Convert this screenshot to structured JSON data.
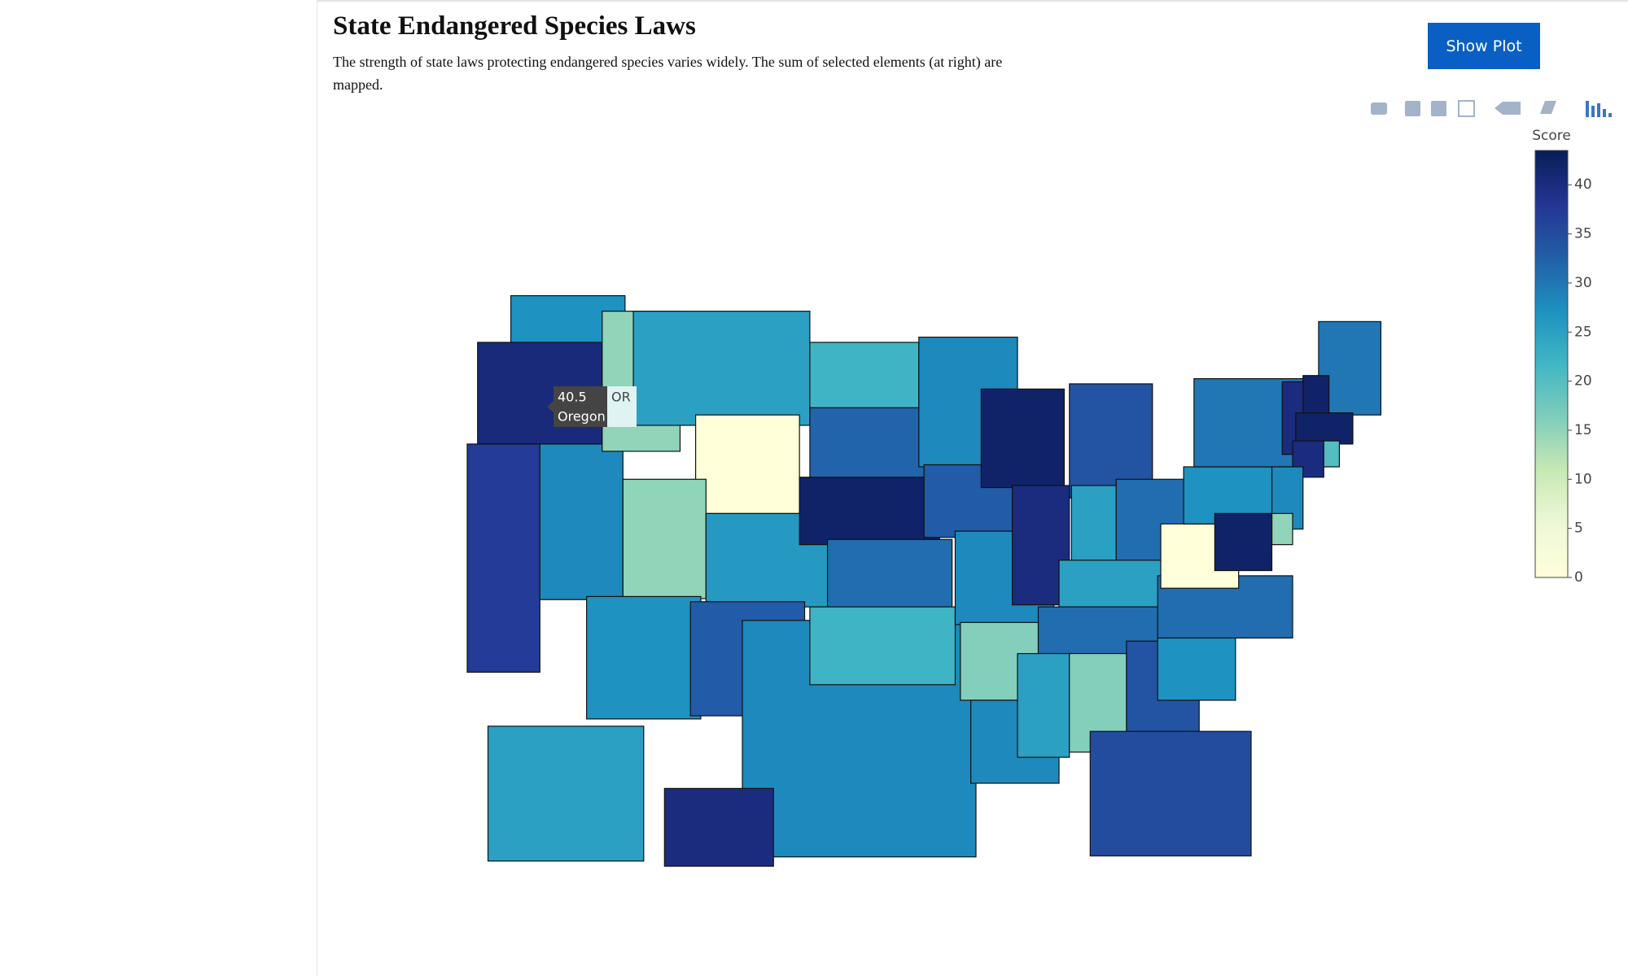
{
  "header": {
    "title": "State Endangered Species Laws",
    "subtitle": "The strength of state laws protecting endangered species varies widely. The sum of selected elements (at right) are mapped."
  },
  "button": {
    "label": "Show Plot"
  },
  "chart_data": {
    "type": "choropleth",
    "values": [
      27,
      40.5,
      37,
      28,
      15,
      25,
      0,
      15,
      27,
      26,
      33,
      22,
      32,
      42,
      31,
      28,
      22,
      28,
      33,
      28,
      16,
      28,
      42,
      40,
      34,
      25,
      31,
      25,
      31,
      25,
      16,
      34,
      35,
      27,
      31,
      0,
      27,
      30,
      30,
      40,
      42,
      42,
      40,
      20,
      28,
      15,
      42,
      25,
      40
    ],
    "colorscale": "YlGnBu",
    "colorbar_title": "Score",
    "zlim": [
      0,
      43.5
    ],
    "zticks": [
      0,
      5,
      10,
      15,
      20,
      25,
      30,
      35,
      40
    ],
    "hover": {
      "name": "Oregon",
      "code": "OR"
    }
  }
}
